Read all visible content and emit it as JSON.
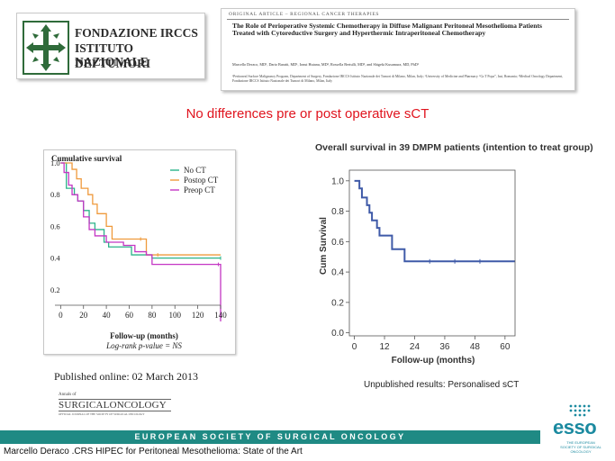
{
  "logo": {
    "line1": "FONDAZIONE IRCCS",
    "line2": "ISTITUTO NAZIONALE",
    "line3": "DEI TUMORI"
  },
  "article": {
    "header": "ORIGINAL ARTICLE – REGIONAL CANCER THERAPIES",
    "title": "The Role of Perioperative Systemic Chemotherapy in Diffuse Malignant Peritoneal Mesothelioma Patients Treated with Cytoreductive Surgery and Hyperthermic Intraperitoneal Chemotherapy",
    "authors": "Marcello Deraco, MD¹, Dario Baratti, MD¹, Ionut Hutanu, MD², Rossella Bertulli, MD³, and Shigeki Kusamura, MD, PhD¹",
    "affiliations": "¹Peritoneal Surface Malignancy Program, Department of Surgery, Fondazione IRCCS Istituto Nazionale dei Tumori di Milano, Milan, Italy; ²University of Medicine and Pharmacy “Gr.T Popa”, Iasi, Romania; ³Medical Oncology Department, Fondazione IRCCS Istituto Nazionale dei Tumori di Milano, Milan, Italy"
  },
  "subtitle": "No differences pre or post operative sCT",
  "published": "Published online: 02 March 2013",
  "journal": {
    "annals": "Annals of",
    "name": "SURGICALONCOLOGY",
    "tagline": "OFFICIAL JOURNAL OF THE SOCIETY OF SURGICAL ONCOLOGY"
  },
  "right_title": "Overall survival in 39 DMPM patients (intention to treat group)",
  "unpublished": "Unpublished results: Personalised sCT",
  "band": "EUROPEAN SOCIETY OF SURGICAL ONCOLOGY",
  "footer": "Marcello Deraco .CRS HIPEC for Peritoneal Mesothelioma: State of the Art",
  "esso": {
    "word": "esso",
    "small": "THE EUROPEAN SOCIETY OF SURGICAL ONCOLOGY"
  },
  "colors": {
    "subtitle": "#e0141e",
    "band": "#1f8a84",
    "no_ct": "#2bb38a",
    "postop_ct": "#ef9a3c",
    "preop_ct": "#c436c4",
    "right_line": "#3f5aa8"
  },
  "chart_data": [
    {
      "type": "line",
      "step": true,
      "title": "Cumulative survival",
      "xlabel": "Follow-up (months)",
      "note": "Log-rank p-value = NS",
      "xlim": [
        -5,
        140
      ],
      "ylim": [
        0,
        1.0
      ],
      "xticks": [
        0,
        20,
        40,
        60,
        80,
        100,
        120,
        140
      ],
      "yticks": [
        0.2,
        0.4,
        0.6,
        0.8,
        1.0
      ],
      "ytick_labels": [
        "0.2",
        "0.4",
        "0.6",
        "0.8",
        "1.0"
      ],
      "legend": "top-right",
      "series": [
        {
          "name": "No CT",
          "color": "#2bb38a",
          "x": [
            0,
            5,
            12,
            15,
            20,
            25,
            30,
            38,
            42,
            60,
            62,
            80,
            140
          ],
          "y": [
            1.0,
            0.84,
            0.8,
            0.76,
            0.7,
            0.62,
            0.58,
            0.5,
            0.47,
            0.47,
            0.42,
            0.4,
            0.4
          ]
        },
        {
          "name": "Postop CT",
          "color": "#ef9a3c",
          "x": [
            0,
            10,
            14,
            18,
            24,
            28,
            32,
            40,
            45,
            60,
            70,
            75,
            85,
            140
          ],
          "y": [
            1.0,
            0.96,
            0.9,
            0.84,
            0.8,
            0.74,
            0.68,
            0.6,
            0.52,
            0.52,
            0.52,
            0.42,
            0.42,
            0.42
          ]
        },
        {
          "name": "Preop CT",
          "color": "#c436c4",
          "x": [
            0,
            3,
            7,
            10,
            15,
            20,
            25,
            30,
            40,
            55,
            65,
            75,
            80,
            100,
            138,
            140
          ],
          "y": [
            1.0,
            0.94,
            0.86,
            0.8,
            0.76,
            0.66,
            0.58,
            0.54,
            0.5,
            0.48,
            0.44,
            0.42,
            0.36,
            0.36,
            0.36,
            0.0
          ]
        }
      ]
    },
    {
      "type": "line",
      "step": true,
      "title": "Overall survival in 39 DMPM patients (intention to treat group)",
      "xlabel": "Follow-up (months)",
      "ylabel": "Cum Survival",
      "xlim": [
        -2,
        64
      ],
      "ylim": [
        -0.02,
        1.07
      ],
      "xticks": [
        0,
        12,
        24,
        36,
        48,
        60
      ],
      "yticks": [
        0.0,
        0.2,
        0.4,
        0.6,
        0.8,
        1.0
      ],
      "ytick_labels": [
        "0.0",
        "0.2",
        "0.4",
        "0.6",
        "0.8",
        "1.0"
      ],
      "series": [
        {
          "name": "",
          "color": "#3f5aa8",
          "x": [
            0,
            2,
            3,
            5,
            6,
            7,
            9,
            10,
            12,
            15,
            20,
            24,
            64
          ],
          "y": [
            1.0,
            0.95,
            0.89,
            0.84,
            0.79,
            0.74,
            0.69,
            0.64,
            0.64,
            0.55,
            0.47,
            0.47,
            0.47
          ]
        }
      ]
    }
  ]
}
